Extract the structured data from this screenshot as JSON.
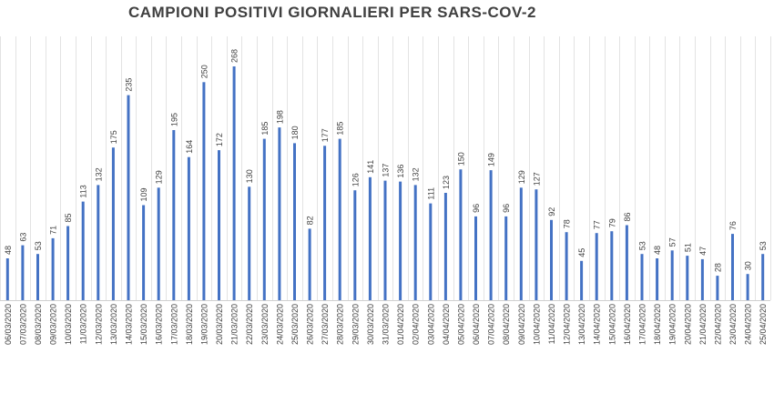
{
  "chart_data": {
    "type": "bar",
    "title": "CAMPIONI POSITIVI GIORNALIERI PER SARS-COV-2",
    "xlabel": "",
    "ylabel": "",
    "bar_color": "#4472c4",
    "gridlines": "vertical",
    "legend": "none",
    "categories": [
      "06/03/2020",
      "07/03/2020",
      "08/03/2020",
      "09/03/2020",
      "10/03/2020",
      "11/03/2020",
      "12/03/2020",
      "13/03/2020",
      "14/03/2020",
      "15/03/2020",
      "16/03/2020",
      "17/03/2020",
      "18/03/2020",
      "19/03/2020",
      "20/03/2020",
      "21/03/2020",
      "22/03/2020",
      "23/03/2020",
      "24/03/2020",
      "25/03/2020",
      "26/03/2020",
      "27/03/2020",
      "28/03/2020",
      "29/03/2020",
      "30/03/2020",
      "31/03/2020",
      "01/04/2020",
      "02/04/2020",
      "03/04/2020",
      "04/04/2020",
      "05/04/2020",
      "06/04/2020",
      "07/04/2020",
      "08/04/2020",
      "09/04/2020",
      "10/04/2020",
      "11/04/2020",
      "12/04/2020",
      "13/04/2020",
      "14/04/2020",
      "15/04/2020",
      "16/04/2020",
      "17/04/2020",
      "18/04/2020",
      "19/04/2020",
      "20/04/2020",
      "21/04/2020",
      "22/04/2020",
      "23/04/2020",
      "24/04/2020",
      "25/04/2020"
    ],
    "values": [
      48,
      63,
      53,
      71,
      85,
      113,
      132,
      175,
      235,
      109,
      129,
      195,
      164,
      250,
      172,
      268,
      130,
      185,
      198,
      180,
      82,
      177,
      185,
      126,
      141,
      137,
      136,
      132,
      111,
      123,
      150,
      96,
      149,
      96,
      129,
      127,
      92,
      78,
      45,
      77,
      79,
      86,
      53,
      48,
      57,
      51,
      47,
      28,
      76,
      30,
      53
    ],
    "ylim": [
      0,
      300
    ]
  }
}
